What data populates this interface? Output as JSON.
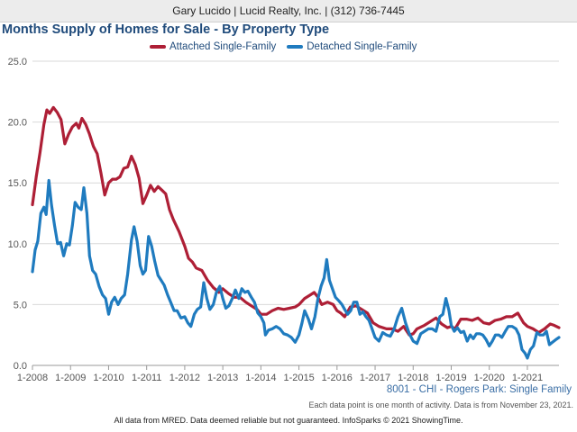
{
  "banner": {
    "text": "Gary Lucido | Lucid Realty, Inc. | (312) 736-7445"
  },
  "colors": {
    "attached": "#ae1f36",
    "detached": "#1f7bbf",
    "title": "#214c7c"
  },
  "region_note": "8001 - CHI - Rogers Park: Single Family",
  "note_line": "Each data point is one month of activity. Data is from November 23, 2021.",
  "footer": "All data from MRED. Data deemed reliable but not guaranteed. InfoSparks © 2021 ShowingTime.",
  "chart_data": {
    "type": "line",
    "title": "Months Supply of Homes for Sale - By Property Type",
    "legend": "top-center",
    "xlabel": "",
    "ylabel": "",
    "ylim": [
      0,
      25
    ],
    "yticks": [
      "0.0",
      "5.0",
      "10.0",
      "15.0",
      "20.0",
      "25.0"
    ],
    "xlim": [
      2008,
      2021.83
    ],
    "xticks": [
      "1-2008",
      "1-2009",
      "1-2010",
      "1-2011",
      "1-2012",
      "1-2013",
      "1-2014",
      "1-2015",
      "1-2016",
      "1-2017",
      "1-2018",
      "1-2019",
      "1-2020",
      "1-2021"
    ],
    "grid": true,
    "series": [
      {
        "name": "Attached Single-Family",
        "key": "attached",
        "points": [
          [
            2008.0,
            13.2
          ],
          [
            2008.1,
            15.5
          ],
          [
            2008.2,
            17.5
          ],
          [
            2008.3,
            19.8
          ],
          [
            2008.38,
            21.0
          ],
          [
            2008.45,
            20.7
          ],
          [
            2008.55,
            21.2
          ],
          [
            2008.65,
            20.8
          ],
          [
            2008.75,
            20.2
          ],
          [
            2008.85,
            18.2
          ],
          [
            2008.95,
            19.0
          ],
          [
            2009.05,
            19.6
          ],
          [
            2009.15,
            19.9
          ],
          [
            2009.22,
            19.5
          ],
          [
            2009.3,
            20.3
          ],
          [
            2009.4,
            19.8
          ],
          [
            2009.5,
            19.0
          ],
          [
            2009.6,
            18.0
          ],
          [
            2009.7,
            17.4
          ],
          [
            2009.8,
            15.8
          ],
          [
            2009.9,
            14.0
          ],
          [
            2010.0,
            15.0
          ],
          [
            2010.1,
            15.3
          ],
          [
            2010.2,
            15.3
          ],
          [
            2010.3,
            15.5
          ],
          [
            2010.4,
            16.2
          ],
          [
            2010.5,
            16.3
          ],
          [
            2010.6,
            17.2
          ],
          [
            2010.7,
            16.5
          ],
          [
            2010.8,
            15.4
          ],
          [
            2010.9,
            13.3
          ],
          [
            2011.0,
            14.0
          ],
          [
            2011.1,
            14.8
          ],
          [
            2011.2,
            14.3
          ],
          [
            2011.3,
            14.7
          ],
          [
            2011.4,
            14.4
          ],
          [
            2011.5,
            14.1
          ],
          [
            2011.6,
            12.8
          ],
          [
            2011.7,
            12.0
          ],
          [
            2011.85,
            11.0
          ],
          [
            2012.0,
            9.8
          ],
          [
            2012.1,
            8.8
          ],
          [
            2012.2,
            8.5
          ],
          [
            2012.3,
            8.0
          ],
          [
            2012.45,
            7.8
          ],
          [
            2012.6,
            7.0
          ],
          [
            2012.75,
            6.4
          ],
          [
            2012.9,
            6.0
          ],
          [
            2013.0,
            6.3
          ],
          [
            2013.15,
            5.9
          ],
          [
            2013.3,
            5.6
          ],
          [
            2013.45,
            5.6
          ],
          [
            2013.6,
            5.2
          ],
          [
            2013.75,
            4.9
          ],
          [
            2013.9,
            4.6
          ],
          [
            2014.0,
            4.2
          ],
          [
            2014.15,
            4.2
          ],
          [
            2014.3,
            4.5
          ],
          [
            2014.45,
            4.7
          ],
          [
            2014.6,
            4.6
          ],
          [
            2014.75,
            4.7
          ],
          [
            2014.9,
            4.8
          ],
          [
            2015.0,
            5.0
          ],
          [
            2015.15,
            5.5
          ],
          [
            2015.3,
            5.8
          ],
          [
            2015.4,
            6.0
          ],
          [
            2015.5,
            5.6
          ],
          [
            2015.6,
            5.0
          ],
          [
            2015.75,
            5.2
          ],
          [
            2015.9,
            5.0
          ],
          [
            2016.0,
            4.5
          ],
          [
            2016.1,
            4.3
          ],
          [
            2016.2,
            4.0
          ],
          [
            2016.35,
            4.8
          ],
          [
            2016.5,
            4.9
          ],
          [
            2016.65,
            4.6
          ],
          [
            2016.8,
            4.3
          ],
          [
            2016.95,
            3.5
          ],
          [
            2017.1,
            3.2
          ],
          [
            2017.3,
            3.0
          ],
          [
            2017.45,
            3.0
          ],
          [
            2017.6,
            2.8
          ],
          [
            2017.75,
            3.2
          ],
          [
            2017.9,
            2.5
          ],
          [
            2018.0,
            2.6
          ],
          [
            2018.1,
            3.0
          ],
          [
            2018.3,
            3.3
          ],
          [
            2018.45,
            3.6
          ],
          [
            2018.6,
            3.9
          ],
          [
            2018.75,
            3.4
          ],
          [
            2018.9,
            3.1
          ],
          [
            2019.0,
            3.2
          ],
          [
            2019.1,
            3.0
          ],
          [
            2019.25,
            3.8
          ],
          [
            2019.4,
            3.8
          ],
          [
            2019.55,
            3.7
          ],
          [
            2019.7,
            3.9
          ],
          [
            2019.85,
            3.5
          ],
          [
            2020.0,
            3.4
          ],
          [
            2020.15,
            3.7
          ],
          [
            2020.3,
            3.8
          ],
          [
            2020.45,
            4.0
          ],
          [
            2020.6,
            4.0
          ],
          [
            2020.75,
            4.3
          ],
          [
            2020.9,
            3.5
          ],
          [
            2021.0,
            3.2
          ],
          [
            2021.15,
            3.0
          ],
          [
            2021.3,
            2.7
          ],
          [
            2021.45,
            3.0
          ],
          [
            2021.6,
            3.4
          ],
          [
            2021.7,
            3.3
          ],
          [
            2021.83,
            3.1
          ]
        ]
      },
      {
        "name": "Detached Single-Family",
        "key": "detached",
        "points": [
          [
            2008.0,
            7.7
          ],
          [
            2008.07,
            9.5
          ],
          [
            2008.14,
            10.2
          ],
          [
            2008.22,
            12.5
          ],
          [
            2008.3,
            13.0
          ],
          [
            2008.36,
            12.4
          ],
          [
            2008.43,
            15.2
          ],
          [
            2008.5,
            13.2
          ],
          [
            2008.58,
            11.5
          ],
          [
            2008.66,
            10.0
          ],
          [
            2008.74,
            10.1
          ],
          [
            2008.82,
            9.0
          ],
          [
            2008.9,
            10.0
          ],
          [
            2008.97,
            9.9
          ],
          [
            2009.05,
            11.5
          ],
          [
            2009.12,
            13.4
          ],
          [
            2009.2,
            13.0
          ],
          [
            2009.28,
            12.8
          ],
          [
            2009.35,
            14.6
          ],
          [
            2009.43,
            12.5
          ],
          [
            2009.5,
            9.0
          ],
          [
            2009.58,
            7.8
          ],
          [
            2009.66,
            7.5
          ],
          [
            2009.75,
            6.5
          ],
          [
            2009.84,
            5.8
          ],
          [
            2009.92,
            5.5
          ],
          [
            2010.0,
            4.2
          ],
          [
            2010.08,
            5.2
          ],
          [
            2010.16,
            5.6
          ],
          [
            2010.25,
            5.0
          ],
          [
            2010.33,
            5.5
          ],
          [
            2010.42,
            5.8
          ],
          [
            2010.5,
            7.5
          ],
          [
            2010.6,
            10.3
          ],
          [
            2010.67,
            11.4
          ],
          [
            2010.75,
            10.2
          ],
          [
            2010.83,
            8.2
          ],
          [
            2010.9,
            7.5
          ],
          [
            2010.97,
            7.8
          ],
          [
            2011.05,
            10.6
          ],
          [
            2011.13,
            9.8
          ],
          [
            2011.21,
            8.6
          ],
          [
            2011.3,
            7.4
          ],
          [
            2011.38,
            7.0
          ],
          [
            2011.46,
            6.6
          ],
          [
            2011.55,
            5.8
          ],
          [
            2011.63,
            5.2
          ],
          [
            2011.72,
            4.5
          ],
          [
            2011.8,
            4.5
          ],
          [
            2011.9,
            3.9
          ],
          [
            2012.0,
            4.0
          ],
          [
            2012.08,
            3.5
          ],
          [
            2012.16,
            3.2
          ],
          [
            2012.25,
            4.2
          ],
          [
            2012.33,
            4.6
          ],
          [
            2012.42,
            4.8
          ],
          [
            2012.5,
            6.8
          ],
          [
            2012.58,
            5.5
          ],
          [
            2012.66,
            4.6
          ],
          [
            2012.75,
            5.0
          ],
          [
            2012.83,
            6.0
          ],
          [
            2012.92,
            6.5
          ],
          [
            2013.0,
            5.5
          ],
          [
            2013.08,
            4.7
          ],
          [
            2013.16,
            4.9
          ],
          [
            2013.25,
            5.5
          ],
          [
            2013.33,
            6.2
          ],
          [
            2013.42,
            5.5
          ],
          [
            2013.5,
            6.3
          ],
          [
            2013.58,
            6.0
          ],
          [
            2013.66,
            6.1
          ],
          [
            2013.75,
            5.6
          ],
          [
            2013.83,
            5.2
          ],
          [
            2013.92,
            4.3
          ],
          [
            2014.0,
            4.0
          ],
          [
            2014.08,
            3.5
          ],
          [
            2014.12,
            2.5
          ],
          [
            2014.2,
            2.9
          ],
          [
            2014.3,
            3.0
          ],
          [
            2014.4,
            3.2
          ],
          [
            2014.5,
            3.0
          ],
          [
            2014.6,
            2.6
          ],
          [
            2014.7,
            2.5
          ],
          [
            2014.8,
            2.3
          ],
          [
            2014.9,
            1.9
          ],
          [
            2015.0,
            2.5
          ],
          [
            2015.08,
            3.5
          ],
          [
            2015.15,
            4.5
          ],
          [
            2015.25,
            3.8
          ],
          [
            2015.33,
            3.0
          ],
          [
            2015.42,
            4.0
          ],
          [
            2015.5,
            5.5
          ],
          [
            2015.58,
            6.5
          ],
          [
            2015.66,
            7.2
          ],
          [
            2015.73,
            8.7
          ],
          [
            2015.8,
            7.0
          ],
          [
            2015.88,
            6.3
          ],
          [
            2015.96,
            5.6
          ],
          [
            2016.05,
            5.3
          ],
          [
            2016.13,
            5.0
          ],
          [
            2016.2,
            4.6
          ],
          [
            2016.28,
            4.2
          ],
          [
            2016.36,
            4.5
          ],
          [
            2016.44,
            5.2
          ],
          [
            2016.52,
            5.2
          ],
          [
            2016.6,
            4.2
          ],
          [
            2016.68,
            4.4
          ],
          [
            2016.76,
            4.0
          ],
          [
            2016.84,
            3.7
          ],
          [
            2016.92,
            3.0
          ],
          [
            2017.0,
            2.3
          ],
          [
            2017.1,
            2.0
          ],
          [
            2017.2,
            2.7
          ],
          [
            2017.3,
            2.5
          ],
          [
            2017.4,
            2.4
          ],
          [
            2017.5,
            3.0
          ],
          [
            2017.6,
            4.0
          ],
          [
            2017.7,
            4.7
          ],
          [
            2017.8,
            3.5
          ],
          [
            2017.9,
            2.6
          ],
          [
            2018.0,
            2.0
          ],
          [
            2018.1,
            1.8
          ],
          [
            2018.2,
            2.6
          ],
          [
            2018.3,
            2.8
          ],
          [
            2018.4,
            3.0
          ],
          [
            2018.5,
            3.0
          ],
          [
            2018.6,
            2.8
          ],
          [
            2018.7,
            4.0
          ],
          [
            2018.78,
            4.2
          ],
          [
            2018.86,
            5.5
          ],
          [
            2018.94,
            4.5
          ],
          [
            2019.0,
            3.3
          ],
          [
            2019.08,
            2.8
          ],
          [
            2019.16,
            3.1
          ],
          [
            2019.25,
            2.7
          ],
          [
            2019.33,
            2.8
          ],
          [
            2019.42,
            2.0
          ],
          [
            2019.5,
            2.5
          ],
          [
            2019.58,
            2.2
          ],
          [
            2019.66,
            2.6
          ],
          [
            2019.75,
            2.6
          ],
          [
            2019.83,
            2.5
          ],
          [
            2019.92,
            2.1
          ],
          [
            2020.0,
            1.6
          ],
          [
            2020.08,
            2.0
          ],
          [
            2020.16,
            2.5
          ],
          [
            2020.25,
            2.5
          ],
          [
            2020.33,
            2.3
          ],
          [
            2020.42,
            2.8
          ],
          [
            2020.5,
            3.2
          ],
          [
            2020.6,
            3.2
          ],
          [
            2020.7,
            3.0
          ],
          [
            2020.78,
            2.5
          ],
          [
            2020.86,
            1.3
          ],
          [
            2020.94,
            1.0
          ],
          [
            2021.0,
            0.6
          ],
          [
            2021.08,
            1.3
          ],
          [
            2021.16,
            1.6
          ],
          [
            2021.25,
            2.7
          ],
          [
            2021.33,
            2.5
          ],
          [
            2021.42,
            2.5
          ],
          [
            2021.5,
            2.8
          ],
          [
            2021.58,
            1.7
          ],
          [
            2021.66,
            1.9
          ],
          [
            2021.74,
            2.1
          ],
          [
            2021.83,
            2.3
          ]
        ]
      }
    ]
  }
}
